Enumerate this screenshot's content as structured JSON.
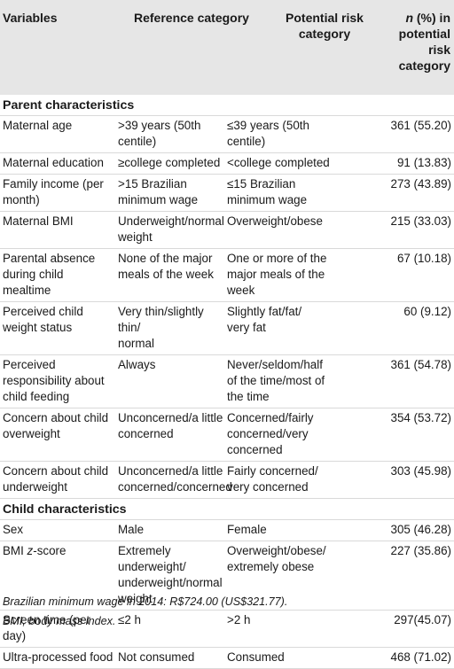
{
  "header": {
    "variables": "Variables",
    "reference": "Reference category",
    "potential_line1": "Potential risk",
    "potential_line2": "category",
    "n_label": "n",
    "n_rest_line1": " (%) in",
    "n_line2": "potential",
    "n_line3": "risk",
    "n_line4": "category"
  },
  "sections": {
    "parent": "Parent characteristics",
    "child": "Child characteristics"
  },
  "parent_rows": [
    {
      "variable": [
        "Maternal age"
      ],
      "reference": [
        ">39 years (50th",
        "centile)"
      ],
      "potential": [
        "≤39 years (50th",
        "centile)"
      ],
      "n": "361 (55.20)"
    },
    {
      "variable": [
        "Maternal education"
      ],
      "reference": [
        "≥college completed"
      ],
      "potential": [
        "<college completed"
      ],
      "n": "91 (13.83)"
    },
    {
      "variable": [
        "Family income (per",
        "month)"
      ],
      "reference": [
        ">15 Brazilian",
        "minimum wage"
      ],
      "potential": [
        "≤15 Brazilian",
        "minimum wage"
      ],
      "n": "273 (43.89)"
    },
    {
      "variable": [
        "Maternal BMI"
      ],
      "reference": [
        "Underweight/normal",
        "weight"
      ],
      "potential": [
        "Overweight/obese"
      ],
      "n": "215 (33.03)"
    },
    {
      "variable": [
        "Parental absence",
        "during child mealtime"
      ],
      "reference": [
        "None of the major",
        "meals of the week"
      ],
      "potential": [
        "One or more of the",
        "major meals of the",
        "week"
      ],
      "n": "67 (10.18)"
    },
    {
      "variable": [
        "Perceived child",
        "weight status"
      ],
      "reference": [
        "Very thin/slightly thin/",
        "normal"
      ],
      "potential": [
        "Slightly fat/fat/",
        "very fat"
      ],
      "n": "60 (9.12)"
    },
    {
      "variable": [
        "Perceived",
        "responsibility about",
        "child feeding"
      ],
      "reference": [
        "Always"
      ],
      "potential": [
        "Never/seldom/half",
        "of the time/most of",
        "the time"
      ],
      "n": "361 (54.78)"
    },
    {
      "variable": [
        "Concern about child",
        "overweight"
      ],
      "reference": [
        "Unconcerned/a little",
        "concerned"
      ],
      "potential": [
        "Concerned/fairly",
        "concerned/very",
        "concerned"
      ],
      "n": "354 (53.72)"
    },
    {
      "variable": [
        "Concern about child",
        "underweight"
      ],
      "reference": [
        "Unconcerned/a little",
        "concerned/concerned"
      ],
      "potential": [
        "Fairly concerned/",
        "very concerned"
      ],
      "n": "303 (45.98)"
    }
  ],
  "child_rows": [
    {
      "variable": [
        "Sex"
      ],
      "reference": [
        "Male"
      ],
      "potential": [
        "Female"
      ],
      "n": "305 (46.28)"
    },
    {
      "variable": [
        "BMI z-score"
      ],
      "reference": [
        "Extremely underweight/",
        "underweight/normal",
        "weight"
      ],
      "potential": [
        "Overweight/obese/",
        "extremely obese"
      ],
      "n": "227 (35.86)"
    },
    {
      "variable": [
        "Screen time (per day)"
      ],
      "reference": [
        "≤2 h"
      ],
      "potential": [
        ">2 h"
      ],
      "n": "297(45.07)"
    },
    {
      "variable": [
        "Ultra-processed food"
      ],
      "reference": [
        "Not consumed"
      ],
      "potential": [
        "Consumed"
      ],
      "n": "468 (71.02)"
    }
  ],
  "footer": {
    "line1": "Brazilian minimum wage in 2014: R$724.00 (US$321.77).",
    "line2": "BMI, body mass index."
  }
}
